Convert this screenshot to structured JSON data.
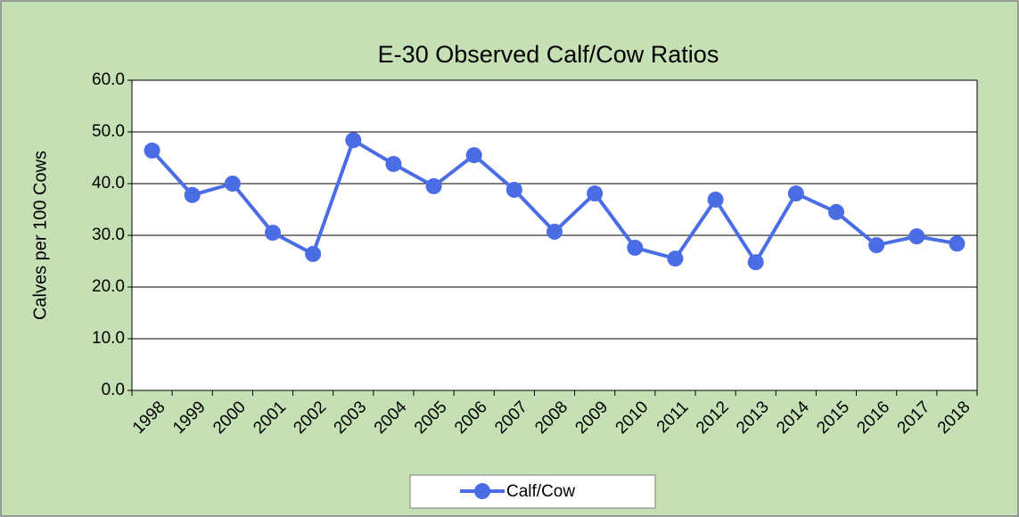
{
  "chart_data": {
    "type": "line",
    "title": "E-30 Observed Calf/Cow Ratios",
    "y_label": "Calves per 100 Cows",
    "categories": [
      "1998",
      "1999",
      "2000",
      "2001",
      "2002",
      "2003",
      "2004",
      "2005",
      "2006",
      "2007",
      "2008",
      "2009",
      "2010",
      "2011",
      "2012",
      "2013",
      "2014",
      "2015",
      "2016",
      "2017",
      "2018"
    ],
    "series": [
      {
        "name": "Calf/Cow",
        "color": "#4a6de5",
        "values": [
          46.4,
          37.8,
          40.0,
          30.5,
          26.4,
          48.4,
          43.8,
          39.5,
          45.5,
          38.8,
          30.7,
          38.1,
          27.6,
          25.5,
          36.9,
          24.8,
          38.1,
          34.5,
          28.1,
          29.8,
          28.4
        ]
      }
    ],
    "ylim": [
      0,
      60
    ],
    "yticks": [
      {
        "value": 0,
        "label": "0.0"
      },
      {
        "value": 10,
        "label": "10.0"
      },
      {
        "value": 20,
        "label": "20.0"
      },
      {
        "value": 30,
        "label": "30.0"
      },
      {
        "value": 40,
        "label": "40.0"
      },
      {
        "value": 50,
        "label": "50.0"
      },
      {
        "value": 60,
        "label": "60.0"
      }
    ],
    "grid": true,
    "legend": "bottom"
  }
}
